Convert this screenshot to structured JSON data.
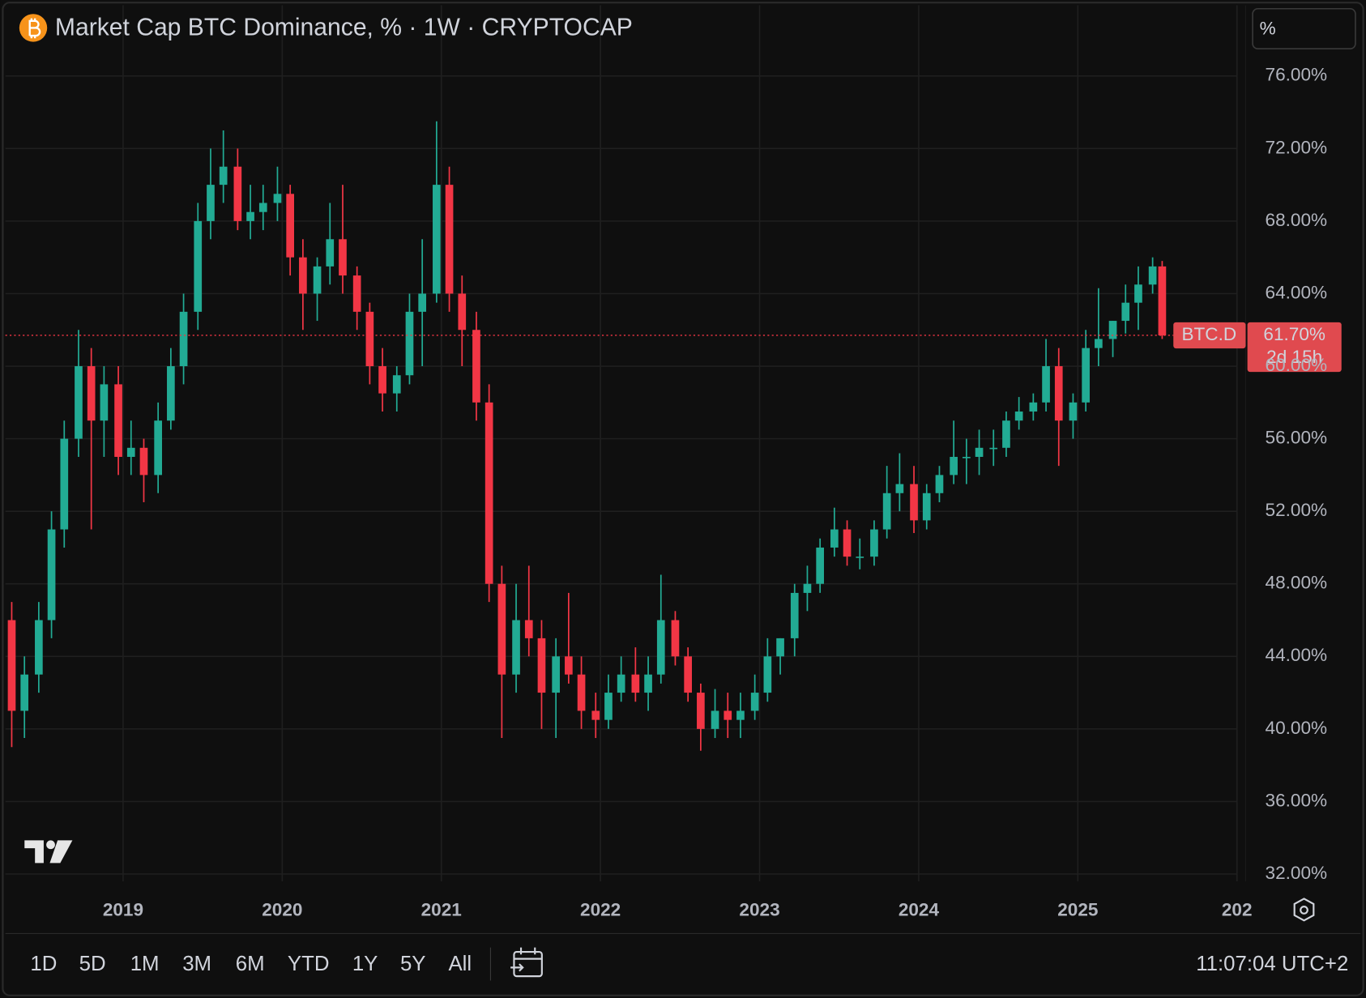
{
  "header": {
    "title": "Market Cap BTC Dominance, % · 1W · CRYPTOCAP",
    "scale_button": "%"
  },
  "chart_data": {
    "type": "candlestick",
    "x": [
      2018.3,
      2018.38,
      2018.47,
      2018.55,
      2018.63,
      2018.72,
      2018.8,
      2018.88,
      2018.97,
      2019.05,
      2019.13,
      2019.22,
      2019.3,
      2019.38,
      2019.47,
      2019.55,
      2019.63,
      2019.72,
      2019.8,
      2019.88,
      2019.97,
      2020.05,
      2020.13,
      2020.22,
      2020.3,
      2020.38,
      2020.47,
      2020.55,
      2020.63,
      2020.72,
      2020.8,
      2020.88,
      2020.97,
      2021.05,
      2021.13,
      2021.22,
      2021.3,
      2021.38,
      2021.47,
      2021.55,
      2021.63,
      2021.72,
      2021.8,
      2021.88,
      2021.97,
      2022.05,
      2022.13,
      2022.22,
      2022.3,
      2022.38,
      2022.47,
      2022.55,
      2022.63,
      2022.72,
      2022.8,
      2022.88,
      2022.97,
      2023.05,
      2023.13,
      2023.22,
      2023.3,
      2023.38,
      2023.47,
      2023.55,
      2023.63,
      2023.72,
      2023.8,
      2023.88,
      2023.97,
      2024.05,
      2024.13,
      2024.22,
      2024.3,
      2024.38,
      2024.47,
      2024.55,
      2024.63,
      2024.72,
      2024.8,
      2024.88,
      2024.97,
      2025.05,
      2025.13,
      2025.22,
      2025.3,
      2025.38,
      2025.47,
      2025.53
    ],
    "ohlc": [
      [
        46,
        47,
        39,
        41
      ],
      [
        41,
        44,
        39.5,
        43
      ],
      [
        43,
        47,
        42,
        46
      ],
      [
        46,
        52,
        45,
        51
      ],
      [
        51,
        57,
        50,
        56
      ],
      [
        56,
        62,
        55,
        60
      ],
      [
        60,
        61,
        51,
        57
      ],
      [
        57,
        60,
        55,
        59
      ],
      [
        59,
        60,
        54,
        55
      ],
      [
        55,
        57,
        54,
        55.5
      ],
      [
        55.5,
        56,
        52.5,
        54
      ],
      [
        54,
        58,
        53,
        57
      ],
      [
        57,
        61,
        56.5,
        60
      ],
      [
        60,
        64,
        59,
        63
      ],
      [
        63,
        69,
        62,
        68
      ],
      [
        68,
        72,
        67,
        70
      ],
      [
        70,
        73,
        69,
        71
      ],
      [
        71,
        72,
        67.5,
        68
      ],
      [
        68,
        70,
        67,
        68.5
      ],
      [
        68.5,
        70,
        67.5,
        69
      ],
      [
        69,
        71,
        68,
        69.5
      ],
      [
        69.5,
        70,
        65,
        66
      ],
      [
        66,
        67,
        62,
        64
      ],
      [
        64,
        66,
        62.5,
        65.5
      ],
      [
        65.5,
        69,
        64.5,
        67
      ],
      [
        67,
        70,
        64,
        65
      ],
      [
        65,
        65.5,
        62,
        63
      ],
      [
        63,
        63.5,
        59,
        60
      ],
      [
        60,
        61,
        57.5,
        58.5
      ],
      [
        58.5,
        60,
        57.5,
        59.5
      ],
      [
        59.5,
        64,
        59,
        63
      ],
      [
        63,
        67,
        60,
        64
      ],
      [
        64,
        73.5,
        63.5,
        70
      ],
      [
        70,
        71,
        63,
        64
      ],
      [
        64,
        65,
        60,
        62
      ],
      [
        62,
        63,
        57,
        58
      ],
      [
        58,
        59,
        47,
        48
      ],
      [
        48,
        49,
        39.5,
        43
      ],
      [
        43,
        48,
        42,
        46
      ],
      [
        46,
        49,
        44,
        45
      ],
      [
        45,
        46,
        40,
        42
      ],
      [
        42,
        45,
        39.5,
        44
      ],
      [
        44,
        47.5,
        42.5,
        43
      ],
      [
        43,
        44,
        40,
        41
      ],
      [
        41,
        42,
        39.5,
        40.5
      ],
      [
        40.5,
        43,
        40,
        42
      ],
      [
        42,
        44,
        41.5,
        43
      ],
      [
        43,
        44.5,
        41.5,
        42
      ],
      [
        42,
        44,
        41,
        43
      ],
      [
        43,
        48.5,
        42.5,
        46
      ],
      [
        46,
        46.5,
        43.5,
        44
      ],
      [
        44,
        44.5,
        41.5,
        42
      ],
      [
        42,
        42.5,
        38.8,
        40
      ],
      [
        40,
        42.2,
        39.5,
        41
      ],
      [
        41,
        42,
        39.5,
        40.5
      ],
      [
        40.5,
        42,
        39.5,
        41
      ],
      [
        41,
        43,
        40.5,
        42
      ],
      [
        42,
        45,
        41.5,
        44
      ],
      [
        44,
        45,
        43,
        45
      ],
      [
        45,
        48,
        44,
        47.5
      ],
      [
        47.5,
        49,
        46.5,
        48
      ],
      [
        48,
        50.5,
        47.5,
        50
      ],
      [
        50,
        52.2,
        49.5,
        51
      ],
      [
        51,
        51.5,
        49,
        49.5
      ],
      [
        49.5,
        50.5,
        48.8,
        49.5
      ],
      [
        49.5,
        51.5,
        49,
        51
      ],
      [
        51,
        54.5,
        50.5,
        53
      ],
      [
        53,
        55.2,
        52,
        53.5
      ],
      [
        53.5,
        54.5,
        50.8,
        51.5
      ],
      [
        51.5,
        53.5,
        51,
        53
      ],
      [
        53,
        54.5,
        52.5,
        54
      ],
      [
        54,
        57,
        53.5,
        55
      ],
      [
        55,
        56,
        53.5,
        55
      ],
      [
        55,
        56.5,
        54,
        55.5
      ],
      [
        55.5,
        56.5,
        54.5,
        55.5
      ],
      [
        55.5,
        57.5,
        55,
        57
      ],
      [
        57,
        58.3,
        56.5,
        57.5
      ],
      [
        57.5,
        58.5,
        57,
        58
      ],
      [
        58,
        61.5,
        57.5,
        60
      ],
      [
        60,
        61,
        54.5,
        57
      ],
      [
        57,
        58.5,
        56,
        58
      ],
      [
        58,
        62,
        57.5,
        61
      ],
      [
        61,
        64.3,
        60,
        61.5
      ],
      [
        61.5,
        62.5,
        60.5,
        62.5
      ],
      [
        62.5,
        64.5,
        61.8,
        63.5
      ],
      [
        63.5,
        65.5,
        62,
        64.5
      ],
      [
        64.5,
        66,
        64,
        65.5
      ],
      [
        65.5,
        65.8,
        61.5,
        61.7
      ]
    ],
    "up_color": "#22ab94",
    "down_color": "#f23645",
    "xlim": [
      2018.26,
      2026.0
    ],
    "xticks": [
      2019,
      2020,
      2021,
      2022,
      2023,
      2024,
      2025,
      {
        "value": 2026,
        "label": "202"
      }
    ],
    "ylim": [
      31.6,
      79.9
    ],
    "yticks": [
      {
        "value": 32,
        "label": "32.00%"
      },
      {
        "value": 36,
        "label": "36.00%"
      },
      {
        "value": 40,
        "label": "40.00%"
      },
      {
        "value": 44,
        "label": "44.00%"
      },
      {
        "value": 48,
        "label": "48.00%"
      },
      {
        "value": 52,
        "label": "52.00%"
      },
      {
        "value": 56,
        "label": "56.00%"
      },
      {
        "value": 60,
        "label": "60.00%"
      },
      {
        "value": 64,
        "label": "64.00%"
      },
      {
        "value": 68,
        "label": "68.00%"
      },
      {
        "value": 72,
        "label": "72.00%"
      },
      {
        "value": 76,
        "label": "76.00%"
      }
    ],
    "grid": true,
    "last_price": {
      "symbol": "BTC.D",
      "value": 61.7,
      "label": "61.70%",
      "countdown": "2d 15h"
    }
  },
  "toolbar": {
    "ranges": [
      "1D",
      "5D",
      "1M",
      "3M",
      "6M",
      "YTD",
      "1Y",
      "5Y",
      "All"
    ],
    "clock": "11:07:04 UTC+2"
  }
}
